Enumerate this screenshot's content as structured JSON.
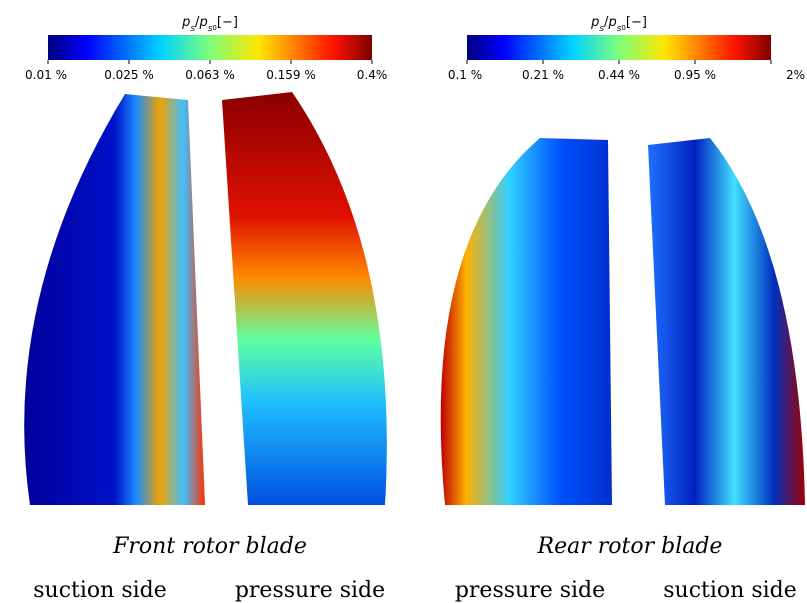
{
  "panels": [
    {
      "colorbar": {
        "label": {
          "var": "p",
          "sub": "s",
          "slash": "/",
          "var2": "p",
          "sub2": "s",
          "subsub": "0",
          "unit": "[−]"
        },
        "ticks": [
          "0.01 %",
          "0.025 %",
          "0.063 %",
          "0.159 %",
          "0.4%"
        ]
      },
      "caption": "Front rotor blade",
      "sides": [
        "suction side",
        "pressure side"
      ]
    },
    {
      "colorbar": {
        "label": {
          "var": "p",
          "sub": "s",
          "slash": "/",
          "var2": "p",
          "sub2": "s",
          "subsub": "0",
          "unit": "[−]"
        },
        "ticks": [
          "0.1 %",
          "0.21 %",
          "0.44 %",
          "0.95 %",
          "2%"
        ]
      },
      "caption": "Rear rotor blade",
      "sides": [
        "pressure side",
        "suction side"
      ]
    }
  ]
}
